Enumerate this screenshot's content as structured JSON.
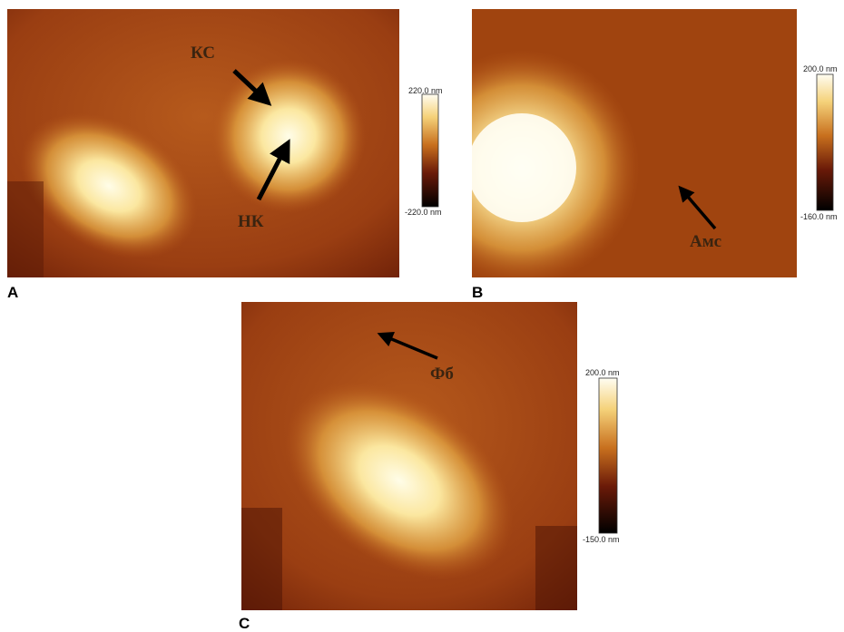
{
  "panels": [
    {
      "label": "A",
      "colorbar": {
        "max": "220.0 nm",
        "min": "-220.0 nm"
      },
      "annotations": [
        "КС",
        "НК"
      ]
    },
    {
      "label": "B",
      "colorbar": {
        "max": "200.0 nm",
        "min": "-160.0 nm"
      },
      "annotations": [
        "Амс"
      ]
    },
    {
      "label": "C",
      "colorbar": {
        "max": "200.0 nm",
        "min": "-150.0 nm"
      },
      "annotations": [
        "Фб"
      ]
    }
  ]
}
